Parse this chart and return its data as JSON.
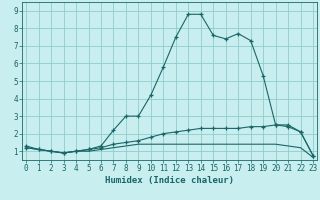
{
  "xlabel": "Humidex (Indice chaleur)",
  "background_color": "#c8eef0",
  "grid_color": "#90cccc",
  "line_color": "#1a6666",
  "xlim": [
    -0.3,
    23.3
  ],
  "ylim": [
    0.5,
    9.5
  ],
  "xticks": [
    0,
    1,
    2,
    3,
    4,
    5,
    6,
    7,
    8,
    9,
    10,
    11,
    12,
    13,
    14,
    15,
    16,
    17,
    18,
    19,
    20,
    21,
    22,
    23
  ],
  "yticks": [
    1,
    2,
    3,
    4,
    5,
    6,
    7,
    8,
    9
  ],
  "line1_x": [
    0,
    1,
    2,
    3,
    4,
    5,
    6,
    7,
    8,
    9,
    10,
    11,
    12,
    13,
    14,
    15,
    16,
    17,
    18,
    19,
    20,
    21,
    22,
    23
  ],
  "line1_y": [
    1.3,
    1.1,
    1.0,
    0.9,
    1.0,
    1.1,
    1.3,
    2.2,
    3.0,
    3.0,
    4.2,
    5.8,
    7.5,
    8.8,
    8.8,
    7.6,
    7.4,
    7.7,
    7.3,
    5.3,
    2.5,
    2.5,
    2.1,
    0.75
  ],
  "line2_x": [
    0,
    1,
    2,
    3,
    4,
    5,
    6,
    7,
    8,
    9,
    10,
    11,
    12,
    13,
    14,
    15,
    16,
    17,
    18,
    19,
    20,
    21,
    22,
    23
  ],
  "line2_y": [
    1.2,
    1.1,
    1.0,
    0.9,
    1.0,
    1.1,
    1.2,
    1.4,
    1.5,
    1.6,
    1.8,
    2.0,
    2.1,
    2.2,
    2.3,
    2.3,
    2.3,
    2.3,
    2.4,
    2.4,
    2.5,
    2.4,
    2.1,
    0.75
  ],
  "line3_x": [
    0,
    1,
    2,
    3,
    4,
    5,
    6,
    7,
    8,
    9,
    10,
    11,
    12,
    13,
    14,
    15,
    16,
    17,
    18,
    19,
    20,
    21,
    22,
    23
  ],
  "line3_y": [
    1.2,
    1.1,
    1.0,
    0.9,
    1.0,
    1.0,
    1.1,
    1.2,
    1.3,
    1.4,
    1.4,
    1.4,
    1.4,
    1.4,
    1.4,
    1.4,
    1.4,
    1.4,
    1.4,
    1.4,
    1.4,
    1.3,
    1.2,
    0.65
  ]
}
